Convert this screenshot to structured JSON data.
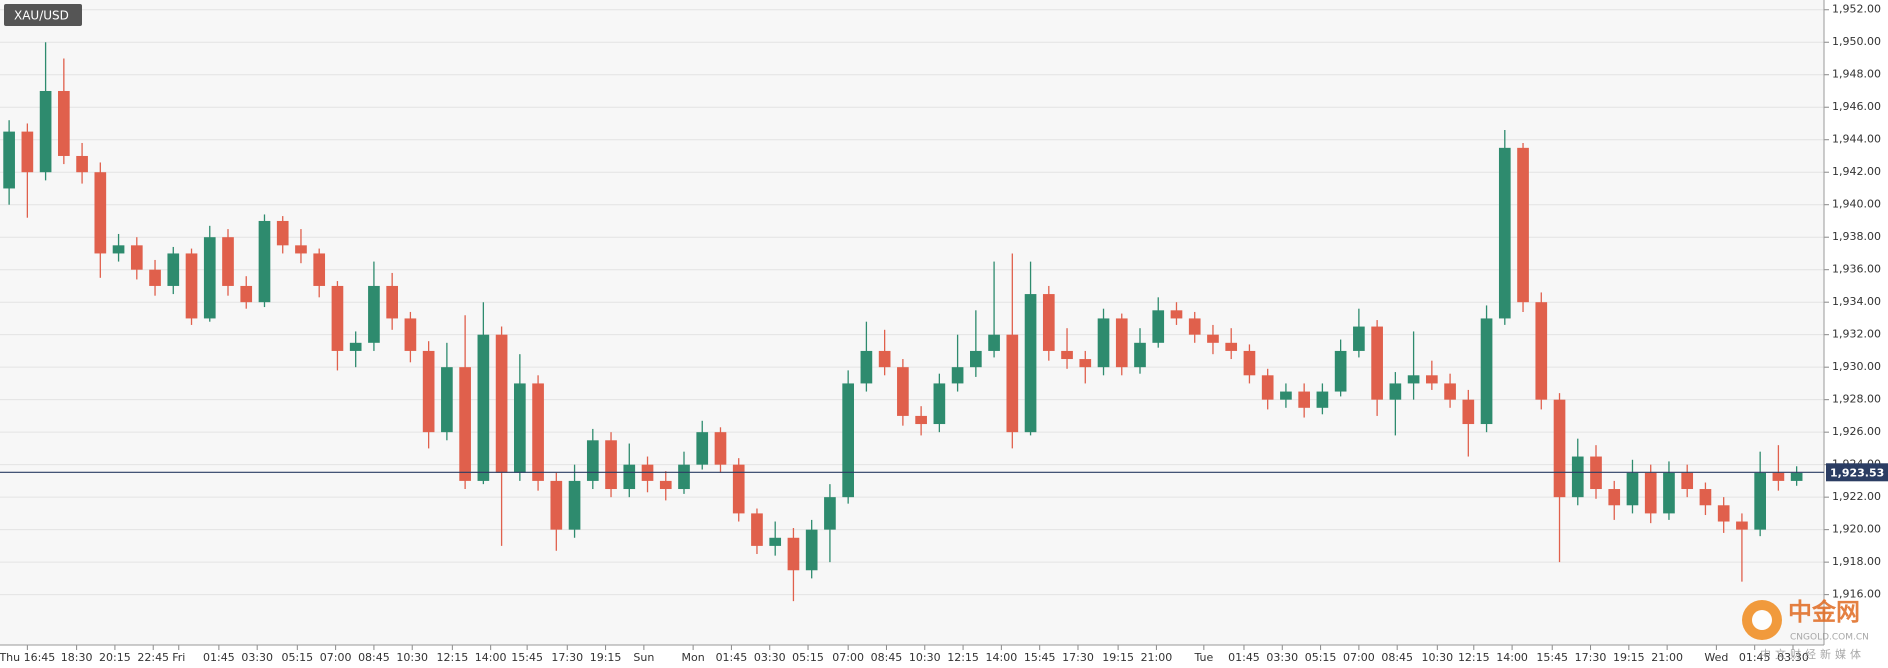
{
  "chart_data": {
    "type": "candlestick",
    "title": "XAU/USD",
    "open": [
      1941,
      1944.5,
      1942,
      1947,
      1943,
      1942,
      1937,
      1937.5,
      1936,
      1935,
      1937,
      1933,
      1938,
      1935,
      1934,
      1939,
      1937.5,
      1937,
      1935,
      1931,
      1931.5,
      1935,
      1933,
      1931,
      1926,
      1930,
      1923,
      1932,
      1923.5,
      1929,
      1923,
      1920,
      1923,
      1925.5,
      1922.5,
      1924,
      1923,
      1922.5,
      1924,
      1926,
      1924,
      1921,
      1919,
      1919.5,
      1917.5,
      1920,
      1922,
      1929,
      1931,
      1930,
      1927,
      1926.5,
      1929,
      1930,
      1931,
      1932,
      1926,
      1934.5,
      1931,
      1930.5,
      1930,
      1933,
      1930,
      1931.5,
      1933.5,
      1933,
      1932,
      1931.5,
      1931,
      1929.5,
      1928,
      1928.5,
      1927.5,
      1928.5,
      1931,
      1932.5,
      1928,
      1929,
      1929.5,
      1929,
      1928,
      1926.5,
      1933,
      1943.5,
      1934,
      1928,
      1922,
      1924.5,
      1922.5,
      1921.5,
      1923.5,
      1921,
      1923.5,
      1922.5,
      1921.5,
      1920.5,
      1920,
      1923.5,
      1923
    ],
    "high": [
      1945.2,
      1945,
      1950,
      1949,
      1943.8,
      1942.6,
      1938.2,
      1938,
      1936.6,
      1937.4,
      1937.3,
      1938.7,
      1938.5,
      1935.6,
      1939.4,
      1939.3,
      1938.5,
      1937.3,
      1935.3,
      1932.2,
      1936.5,
      1935.8,
      1933.4,
      1931.6,
      1931.5,
      1933.2,
      1934,
      1932.5,
      1930.8,
      1929.5,
      1923.5,
      1924,
      1926.2,
      1926,
      1925.3,
      1924.5,
      1923.6,
      1924.8,
      1926.7,
      1926.3,
      1924.4,
      1921.3,
      1920.5,
      1920.1,
      1920.6,
      1922.8,
      1929.8,
      1932.8,
      1932.3,
      1930.5,
      1927.6,
      1929.6,
      1932,
      1933.5,
      1936.5,
      1937,
      1936.5,
      1935,
      1932.4,
      1931,
      1933.6,
      1933.3,
      1932.4,
      1934.3,
      1934,
      1933.4,
      1932.6,
      1932.4,
      1931.4,
      1929.9,
      1929,
      1929,
      1929,
      1931.7,
      1933.6,
      1932.9,
      1929.7,
      1932.2,
      1930.4,
      1929.6,
      1928.6,
      1933.8,
      1944.6,
      1943.8,
      1934.6,
      1928.4,
      1925.6,
      1925.2,
      1923,
      1924.3,
      1924,
      1924.2,
      1924,
      1922.9,
      1922,
      1921,
      1924.8,
      1925.2,
      1923.9
    ],
    "low": [
      1940,
      1939.2,
      1941.5,
      1942.5,
      1941.3,
      1935.5,
      1936.5,
      1935.4,
      1934.4,
      1934.5,
      1932.6,
      1932.8,
      1934.4,
      1933.6,
      1933.7,
      1937,
      1936.4,
      1934.3,
      1929.8,
      1930,
      1931,
      1932.3,
      1930.3,
      1925,
      1925.5,
      1922.5,
      1922.8,
      1919,
      1923,
      1922.4,
      1918.7,
      1919.5,
      1922.5,
      1922,
      1922,
      1922.3,
      1921.8,
      1922.2,
      1923.7,
      1923.5,
      1920.5,
      1918.5,
      1918.4,
      1915.6,
      1917,
      1918,
      1921.6,
      1928.5,
      1929.5,
      1926.4,
      1925.8,
      1926,
      1928.5,
      1929.4,
      1930.6,
      1925,
      1925.8,
      1930.4,
      1929.9,
      1929,
      1929.5,
      1929.5,
      1929.6,
      1931.2,
      1932.6,
      1931.5,
      1930.8,
      1930.5,
      1929,
      1927.4,
      1927.5,
      1926.9,
      1927.1,
      1928.2,
      1930.6,
      1927,
      1925.8,
      1928,
      1928.6,
      1927.5,
      1924.5,
      1926,
      1932.6,
      1933.4,
      1927.4,
      1918,
      1921.5,
      1921.9,
      1920.6,
      1921,
      1920.4,
      1920.6,
      1922,
      1920.9,
      1919.8,
      1916.8,
      1919.6,
      1922.4,
      1922.7
    ],
    "close": [
      1944.5,
      1942,
      1947,
      1943,
      1942,
      1937,
      1937.5,
      1936,
      1935,
      1937,
      1933,
      1938,
      1935,
      1934,
      1939,
      1937.5,
      1937,
      1935,
      1931,
      1931.5,
      1935,
      1933,
      1931,
      1926,
      1930,
      1923,
      1932,
      1923.5,
      1929,
      1923,
      1920,
      1923,
      1925.5,
      1922.5,
      1924,
      1923,
      1922.5,
      1924,
      1926,
      1924,
      1921,
      1919,
      1919.5,
      1917.5,
      1920,
      1922,
      1929,
      1931,
      1930,
      1927,
      1926.5,
      1929,
      1930,
      1931,
      1932,
      1926,
      1934.5,
      1931,
      1930.5,
      1930,
      1933,
      1930,
      1931.5,
      1933.5,
      1933,
      1932,
      1931.5,
      1931,
      1929.5,
      1928,
      1928.5,
      1927.5,
      1928.5,
      1931,
      1932.5,
      1928,
      1929,
      1929.5,
      1929,
      1928,
      1926.5,
      1933,
      1943.5,
      1934,
      1928,
      1922,
      1924.5,
      1922.5,
      1921.5,
      1923.5,
      1921,
      1923.5,
      1922.5,
      1921.5,
      1920.5,
      1920,
      1923.5,
      1923,
      1923.5
    ],
    "up_color": "#2e8b6e",
    "down_color": "#e0604c",
    "xlim": [
      -0.5,
      99.5
    ],
    "xticks": [
      {
        "value": 1.0,
        "label": "Thu 16:45"
      },
      {
        "value": 3.7,
        "label": "18:30"
      },
      {
        "value": 5.8,
        "label": "20:15"
      },
      {
        "value": 7.9,
        "label": "22:45"
      },
      {
        "value": 9.3,
        "label": "Fri"
      },
      {
        "value": 11.5,
        "label": "01:45"
      },
      {
        "value": 13.6,
        "label": "03:30"
      },
      {
        "value": 15.8,
        "label": "05:15"
      },
      {
        "value": 17.9,
        "label": "07:00"
      },
      {
        "value": 20.0,
        "label": "08:45"
      },
      {
        "value": 22.1,
        "label": "10:30"
      },
      {
        "value": 24.3,
        "label": "12:15"
      },
      {
        "value": 26.4,
        "label": "14:00"
      },
      {
        "value": 28.4,
        "label": "15:45"
      },
      {
        "value": 30.6,
        "label": "17:30"
      },
      {
        "value": 32.7,
        "label": "19:15"
      },
      {
        "value": 34.8,
        "label": "Sun"
      },
      {
        "value": 37.5,
        "label": "Mon"
      },
      {
        "value": 39.6,
        "label": "01:45"
      },
      {
        "value": 41.7,
        "label": "03:30"
      },
      {
        "value": 43.8,
        "label": "05:15"
      },
      {
        "value": 46.0,
        "label": "07:00"
      },
      {
        "value": 48.1,
        "label": "08:45"
      },
      {
        "value": 50.2,
        "label": "10:30"
      },
      {
        "value": 52.3,
        "label": "12:15"
      },
      {
        "value": 54.4,
        "label": "14:00"
      },
      {
        "value": 56.5,
        "label": "15:45"
      },
      {
        "value": 58.6,
        "label": "17:30"
      },
      {
        "value": 60.8,
        "label": "19:15"
      },
      {
        "value": 62.9,
        "label": "21:00"
      },
      {
        "value": 65.5,
        "label": "Tue"
      },
      {
        "value": 67.7,
        "label": "01:45"
      },
      {
        "value": 69.8,
        "label": "03:30"
      },
      {
        "value": 71.9,
        "label": "05:15"
      },
      {
        "value": 74.0,
        "label": "07:00"
      },
      {
        "value": 76.1,
        "label": "08:45"
      },
      {
        "value": 78.3,
        "label": "10:30"
      },
      {
        "value": 80.3,
        "label": "12:15"
      },
      {
        "value": 82.4,
        "label": "14:00"
      },
      {
        "value": 84.6,
        "label": "15:45"
      },
      {
        "value": 86.7,
        "label": "17:30"
      },
      {
        "value": 88.8,
        "label": "19:15"
      },
      {
        "value": 90.9,
        "label": "21:00"
      },
      {
        "value": 93.6,
        "label": "Wed"
      },
      {
        "value": 95.7,
        "label": "01:45"
      },
      {
        "value": 97.8,
        "label": "03:30"
      }
    ],
    "ylim": [
      1912.9,
      1952.6
    ],
    "yticks": [
      {
        "value": 1916,
        "label": "1,916.00"
      },
      {
        "value": 1918,
        "label": "1,918.00"
      },
      {
        "value": 1920,
        "label": "1,920.00"
      },
      {
        "value": 1922,
        "label": "1,922.00"
      },
      {
        "value": 1924,
        "label": "1,924.00"
      },
      {
        "value": 1926,
        "label": "1,926.00"
      },
      {
        "value": 1928,
        "label": "1,928.00"
      },
      {
        "value": 1930,
        "label": "1,930.00"
      },
      {
        "value": 1932,
        "label": "1,932.00"
      },
      {
        "value": 1934,
        "label": "1,934.00"
      },
      {
        "value": 1936,
        "label": "1,936.00"
      },
      {
        "value": 1938,
        "label": "1,938.00"
      },
      {
        "value": 1940,
        "label": "1,940.00"
      },
      {
        "value": 1942,
        "label": "1,942.00"
      },
      {
        "value": 1944,
        "label": "1,944.00"
      },
      {
        "value": 1946,
        "label": "1,946.00"
      },
      {
        "value": 1948,
        "label": "1,948.00"
      },
      {
        "value": 1950,
        "label": "1,950.00"
      },
      {
        "value": 1952,
        "label": "1,952.00"
      }
    ],
    "grid": true,
    "last_price": {
      "value": 1923.53,
      "label": "1,923.53"
    },
    "last_color": "#2b3d63"
  },
  "watermark": {
    "name": "中金网",
    "url": "CNGOLD.COM.CN",
    "tagline": "中文财经新媒体"
  }
}
